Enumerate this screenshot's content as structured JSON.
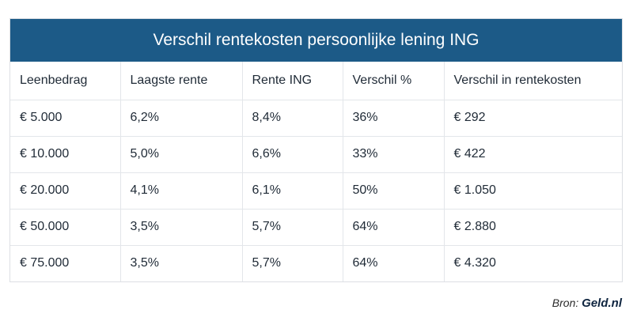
{
  "chart_data": {
    "type": "table",
    "title": "Verschil rentekosten persoonlijke lening ING",
    "columns": [
      "Leenbedrag",
      "Laagste rente",
      "Rente ING",
      "Verschil %",
      "Verschil in rentekosten"
    ],
    "rows": [
      [
        "€ 5.000",
        "6,2%",
        "8,4%",
        "36%",
        "€ 292"
      ],
      [
        "€ 10.000",
        "5,0%",
        "6,6%",
        "33%",
        "€ 422"
      ],
      [
        "€ 20.000",
        "4,1%",
        "6,1%",
        "50%",
        "€ 1.050"
      ],
      [
        "€ 50.000",
        "3,5%",
        "5,7%",
        "64%",
        "€ 2.880"
      ],
      [
        "€ 75.000",
        "3,5%",
        "5,7%",
        "64%",
        "€ 4.320"
      ]
    ]
  },
  "source": {
    "label": "Bron:",
    "name": "Geld.nl"
  },
  "colors": {
    "header_bg": "#1c5a87",
    "header_text": "#ffffff"
  }
}
